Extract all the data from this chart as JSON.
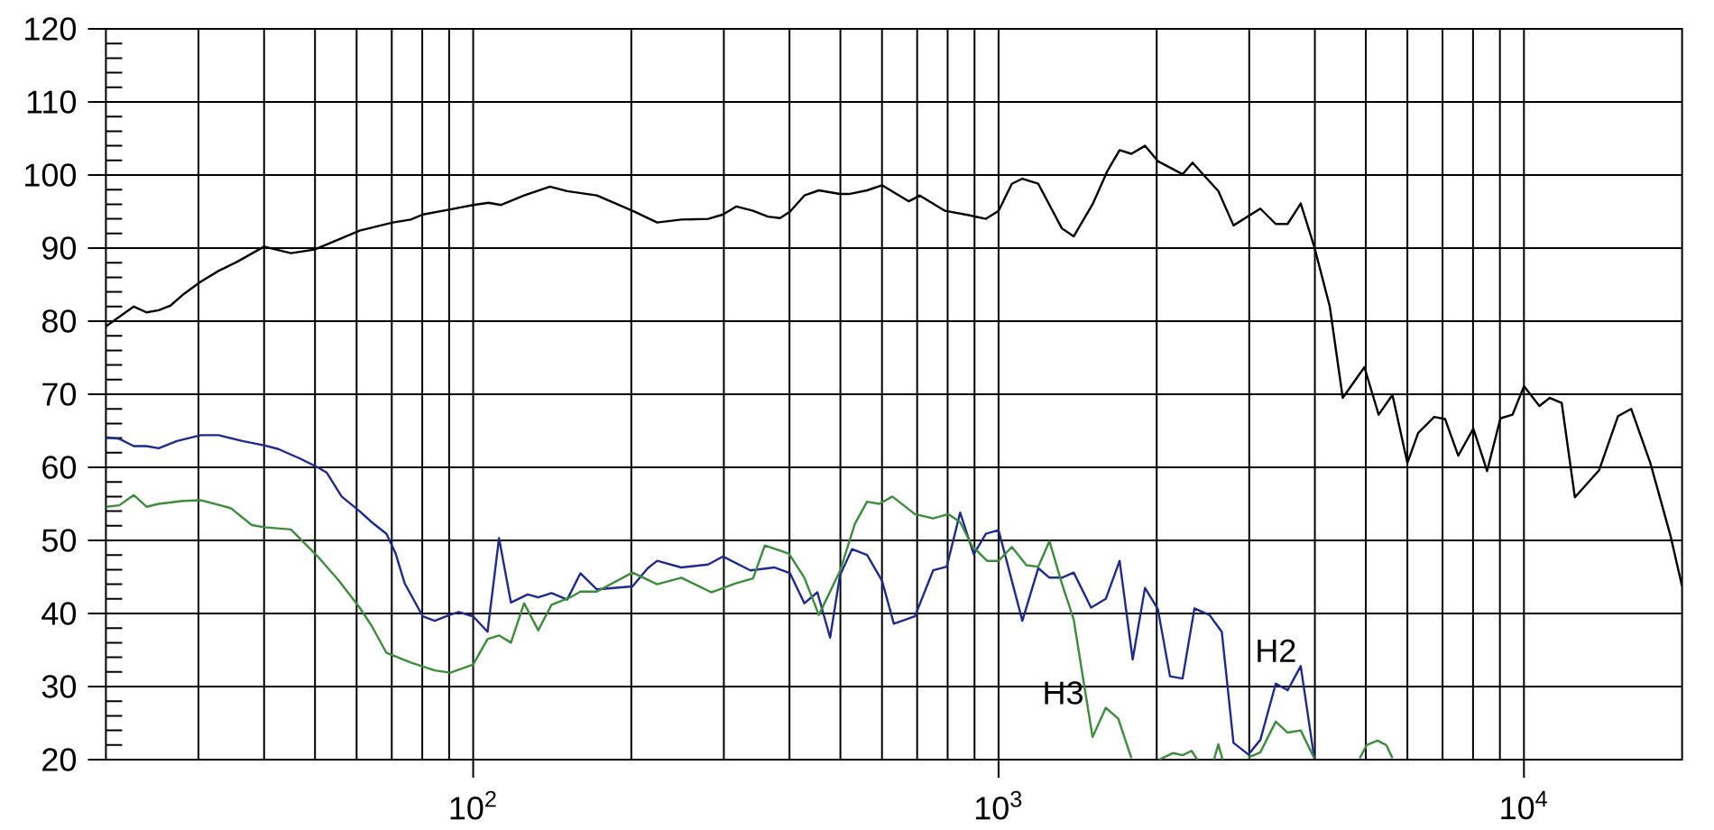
{
  "chart_data": {
    "type": "line",
    "log": "x",
    "grid": true,
    "xlim": [
      20,
      20000
    ],
    "ylim": [
      20,
      120
    ],
    "xticks": [
      {
        "value": 100,
        "label": "10$^{2}$"
      },
      {
        "value": 1000,
        "label": "10$^{3}$"
      },
      {
        "value": 10000,
        "label": "10$^{4}$"
      }
    ],
    "yticks": [
      20,
      30,
      40,
      50,
      60,
      70,
      80,
      90,
      100,
      110,
      120
    ],
    "series": [
      {
        "color": "#000000",
        "x": [
          20,
          22.6,
          23.9,
          25.2,
          26.5,
          28.0,
          30.3,
          32.8,
          35.5,
          40.0,
          45.0,
          49.9,
          55.5,
          60.8,
          70.3,
          76.1,
          80.2,
          90.5,
          100,
          107,
          113,
          125,
          140,
          151,
          172,
          201,
          224,
          249,
          280,
          299,
          317,
          341,
          364,
          384,
          401,
          427,
          455,
          499,
          519,
          562,
          600,
          675,
          708,
          791,
          878,
          946,
          1000,
          1060,
          1110,
          1190,
          1320,
          1390,
          1510,
          1610,
          1700,
          1790,
          1900,
          2010,
          2240,
          2340,
          2450,
          2620,
          2800,
          3150,
          3370,
          3550,
          3760,
          3990,
          4270,
          4520,
          4970,
          5290,
          5620,
          6000,
          6290,
          6750,
          7080,
          7500,
          8010,
          8510,
          9020,
          9510,
          10000,
          10700,
          11200,
          11800,
          12500,
          13900,
          15100,
          16000,
          17400,
          19000,
          20000
        ],
        "values": [
          79.3,
          82.0,
          81.2,
          81.5,
          82.1,
          83.6,
          85.4,
          86.9,
          88.1,
          90.2,
          89.3,
          89.8,
          91.2,
          92.4,
          93.5,
          93.9,
          94.6,
          95.3,
          95.9,
          96.2,
          95.9,
          97.2,
          98.4,
          97.8,
          97.2,
          95.1,
          93.5,
          93.9,
          94.0,
          94.6,
          95.7,
          95.1,
          94.3,
          94.1,
          95.0,
          97.2,
          97.9,
          97.4,
          97.4,
          97.9,
          98.6,
          96.4,
          97.2,
          95.1,
          94.5,
          94.0,
          95.1,
          98.8,
          99.5,
          98.8,
          92.7,
          91.6,
          96.0,
          100.5,
          103.4,
          102.9,
          104.0,
          101.9,
          100.1,
          101.7,
          100.1,
          97.8,
          93.1,
          95.4,
          93.3,
          93.3,
          96.1,
          90.2,
          82.0,
          69.5,
          73.7,
          67.2,
          69.9,
          60.6,
          64.7,
          66.9,
          66.6,
          61.6,
          65.3,
          59.5,
          66.7,
          67.2,
          71.1,
          68.4,
          69.5,
          68.8,
          55.9,
          59.6,
          67.0,
          68.0,
          60.6,
          50.7,
          43.7
        ]
      },
      {
        "color": "#1f2a8c",
        "x": [
          20,
          21.2,
          22.6,
          23.9,
          25.2,
          27.3,
          30.3,
          32.8,
          36.4,
          40.0,
          42.6,
          46.8,
          50.6,
          52.6,
          56.2,
          60.8,
          64.1,
          68.4,
          71.2,
          74.1,
          80.2,
          84.5,
          90.2,
          93.9,
          100,
          106.5,
          112,
          118,
          127,
          133,
          141,
          151,
          160,
          172,
          201,
          215,
          224,
          249,
          280,
          299,
          337,
          374,
          401,
          427,
          452,
          478,
          499,
          526,
          562,
          600,
          632,
          693,
          751,
          797,
          845,
          897,
          946,
          1000,
          1110,
          1190,
          1250,
          1320,
          1390,
          1500,
          1600,
          1700,
          1800,
          1900,
          2010,
          2120,
          2240,
          2360,
          2520,
          2660,
          2800,
          2990,
          3150,
          3370,
          3550,
          3760,
          3990
        ],
        "values": [
          64.1,
          63.9,
          62.9,
          62.9,
          62.6,
          63.6,
          64.4,
          64.4,
          63.6,
          63.0,
          62.5,
          61.2,
          60.0,
          59.3,
          56.0,
          54.0,
          52.5,
          50.9,
          48.2,
          44.1,
          39.6,
          39.0,
          39.8,
          40.2,
          39.6,
          37.5,
          50.3,
          41.5,
          42.6,
          42.2,
          42.8,
          41.9,
          45.5,
          43.3,
          43.7,
          46.2,
          47.2,
          46.3,
          46.7,
          47.8,
          45.9,
          46.3,
          45.5,
          41.4,
          42.9,
          36.7,
          45.2,
          48.8,
          48.0,
          44.5,
          38.6,
          39.6,
          45.9,
          46.4,
          53.8,
          48.1,
          50.9,
          51.4,
          39.0,
          46.2,
          44.9,
          44.9,
          45.6,
          40.8,
          42.0,
          47.2,
          33.7,
          43.5,
          40.6,
          31.4,
          31.1,
          40.7,
          39.8,
          37.5,
          22.3,
          20.7,
          22.7,
          30.4,
          29.5,
          32.8,
          20.2
        ]
      },
      {
        "color": "#3c8c3c",
        "x": [
          20,
          21.2,
          22.6,
          23.9,
          25.2,
          28.0,
          30.3,
          34.6,
          37.9,
          40.0,
          45.0,
          50.6,
          55.5,
          60.8,
          64.1,
          68.4,
          76.1,
          84.5,
          90.5,
          100,
          106.5,
          112,
          118,
          125,
          133,
          141,
          153,
          160,
          172,
          201,
          224,
          249,
          284,
          315,
          341,
          359,
          399,
          427,
          455,
          499,
          533,
          562,
          593,
          628,
          693,
          751,
          802,
          845,
          891,
          951,
          1000,
          1060,
          1130,
          1190,
          1250,
          1320,
          1390,
          1450,
          1510,
          1600,
          1690,
          1790,
          1900,
          2020,
          2150,
          2240,
          2330,
          2390,
          2480,
          2570,
          2620,
          2670,
          2830,
          2990,
          3150,
          3370,
          3550,
          3760,
          3990,
          4400,
          4870,
          5020,
          5260,
          5470,
          5620
        ],
        "values": [
          54.6,
          54.8,
          56.2,
          54.6,
          55.0,
          55.4,
          55.5,
          54.4,
          52.1,
          51.8,
          51.5,
          47.8,
          44.5,
          40.8,
          38.3,
          34.6,
          33.3,
          32.2,
          31.9,
          33.0,
          36.5,
          37.0,
          36.0,
          41.4,
          37.7,
          41.2,
          42.2,
          43.0,
          43.0,
          45.6,
          44.0,
          44.9,
          42.9,
          44.1,
          44.8,
          49.3,
          48.2,
          44.9,
          39.8,
          45.8,
          52.3,
          55.3,
          55.0,
          56.0,
          53.6,
          53.0,
          53.6,
          52.5,
          49.2,
          47.2,
          47.2,
          49.1,
          46.6,
          46.4,
          49.9,
          44.1,
          39.2,
          30.9,
          23.1,
          27.1,
          25.6,
          20.2,
          null,
          20.0,
          20.9,
          20.6,
          21.2,
          20.0,
          null,
          20.0,
          22.1,
          20.0,
          null,
          20.3,
          21.0,
          25.2,
          23.7,
          24.0,
          20.2,
          null,
          20.2,
          22.0,
          22.6,
          22.0,
          20.2
        ]
      }
    ],
    "annotations": [
      {
        "text": "H2",
        "x": 3760,
        "y": 32.8
      },
      {
        "text": "H3",
        "x": 1480,
        "y": 27.0
      }
    ]
  }
}
